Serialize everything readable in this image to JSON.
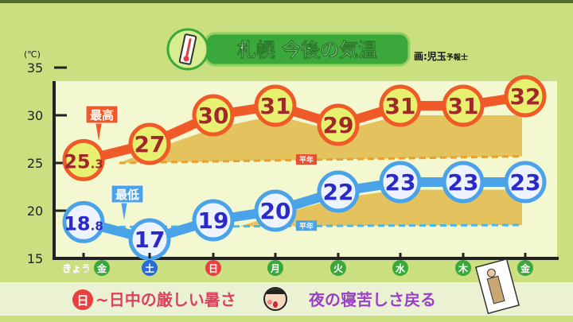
{
  "title": "札幌 今後の気温",
  "credit": {
    "main": "画:児玉",
    "suffix": "予報士"
  },
  "caption": {
    "badge": "日",
    "part1": "~日中の厳しい暑さ",
    "part2": "夜の寝苦しさ戻る"
  },
  "colors": {
    "high": "#f05a28",
    "low": "#4aa3e8",
    "band": "#e0b440",
    "plot_bg": "#f4f8d0",
    "title_bg": "#3aa83a",
    "caption_red": "#e0405a",
    "caption_purple": "#9a40c8"
  },
  "chart_data": {
    "type": "line",
    "title": "札幌 今後の気温",
    "unit_label": "(℃)",
    "ylim": [
      15,
      35
    ],
    "yticks": [
      15,
      20,
      25,
      30,
      35
    ],
    "today_label": "きょう",
    "categories": [
      "金",
      "土",
      "日",
      "月",
      "火",
      "水",
      "木",
      "金"
    ],
    "category_colors": [
      "#3aa83a",
      "#2a6ad8",
      "#e84040",
      "#3aa83a",
      "#3aa83a",
      "#3aa83a",
      "#3aa83a",
      "#3aa83a"
    ],
    "series": [
      {
        "name": "最高",
        "values": [
          25.3,
          27,
          30,
          31,
          29,
          31,
          31,
          32
        ],
        "labels": [
          "25.3",
          "27",
          "30",
          "31",
          "29",
          "31",
          "31",
          "32"
        ],
        "color": "#f05a28"
      },
      {
        "name": "最低",
        "values": [
          18.8,
          17,
          19,
          20,
          22,
          23,
          23,
          23
        ],
        "labels": [
          "18.8",
          "17",
          "19",
          "20",
          "22",
          "23",
          "23",
          "23"
        ],
        "color": "#4aa3e8"
      }
    ],
    "normals": [
      {
        "name": "平年",
        "values": [
          25.0,
          25.7
        ],
        "color": "#e8a030"
      },
      {
        "name": "平年",
        "values": [
          18.3,
          18.5
        ],
        "color": "#4ab8e8"
      }
    ],
    "grid": false
  }
}
